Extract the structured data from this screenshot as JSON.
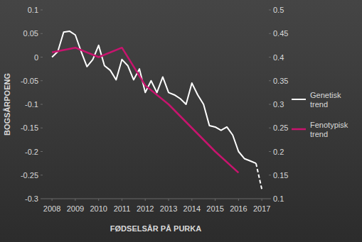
{
  "chart_data": {
    "type": "line",
    "y_label": "BOGSÅRPOENG",
    "x_label": "FØDSELSÅR PÅ PURKA",
    "xlim": [
      2007.6,
      2017.3
    ],
    "xticks": [
      2008,
      2009,
      2010,
      2011,
      2012,
      2013,
      2014,
      2015,
      2016,
      2017
    ],
    "ylim": [
      -0.3,
      0.1
    ],
    "yticks": [
      0.1,
      0.05,
      0,
      -0.05,
      -0.1,
      -0.15,
      -0.2,
      -0.25,
      -0.3
    ],
    "y2lim": [
      0.1,
      0.5
    ],
    "y2ticks": [
      0.5,
      0.45,
      0.4,
      0.35,
      0.3,
      0.25,
      0.2,
      0.15,
      0.1
    ],
    "grid": false,
    "legend": "right",
    "series": [
      {
        "name": "Genetisk trend",
        "color": "#ffffff",
        "line_style": "solid",
        "x": [
          2008.0,
          2008.25,
          2008.5,
          2008.75,
          2009.0,
          2009.25,
          2009.5,
          2009.75,
          2010.0,
          2010.25,
          2010.5,
          2010.75,
          2011.0,
          2011.25,
          2011.5,
          2011.75,
          2012.0,
          2012.25,
          2012.5,
          2012.75,
          2013.0,
          2013.25,
          2013.5,
          2013.75,
          2014.0,
          2014.25,
          2014.5,
          2014.75,
          2015.0,
          2015.25,
          2015.5,
          2015.75,
          2016.0,
          2016.25,
          2016.5,
          2016.75
        ],
        "values": [
          0.0,
          0.012,
          0.053,
          0.055,
          0.047,
          0.012,
          -0.02,
          -0.005,
          0.025,
          -0.018,
          -0.028,
          -0.048,
          -0.005,
          -0.018,
          -0.048,
          -0.025,
          -0.075,
          -0.05,
          -0.075,
          -0.042,
          -0.075,
          -0.08,
          -0.088,
          -0.1,
          -0.055,
          -0.08,
          -0.1,
          -0.145,
          -0.148,
          -0.155,
          -0.148,
          -0.165,
          -0.2,
          -0.215,
          -0.22,
          -0.225
        ]
      },
      {
        "name": "Genetisk trend",
        "color": "#ffffff",
        "line_style": "dashed",
        "x": [
          2016.75,
          2017.0
        ],
        "values": [
          -0.225,
          -0.28
        ]
      },
      {
        "name": "Fenotypisk trend",
        "color": "#c8146e",
        "line_style": "solid",
        "axis": "y2",
        "x": [
          2008,
          2009,
          2010,
          2011,
          2012,
          2013,
          2014,
          2015,
          2016
        ],
        "values": [
          0.41,
          0.42,
          0.4,
          0.42,
          0.34,
          0.3,
          0.25,
          0.2,
          0.155
        ]
      }
    ]
  }
}
